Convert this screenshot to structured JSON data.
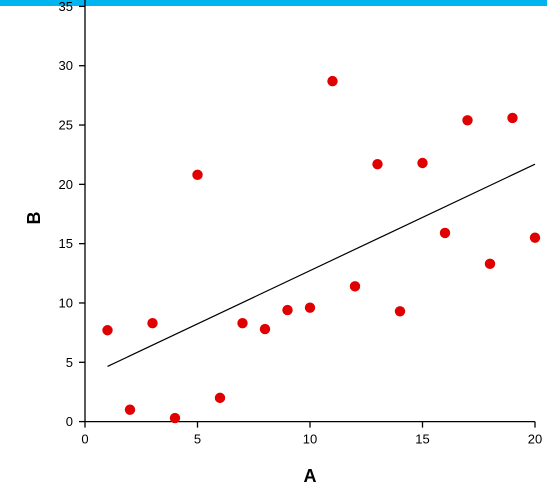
{
  "colors": {
    "top_bar": "#00b4f0",
    "point_fill": "#e00000",
    "axis": "#000000",
    "trendline": "#000000",
    "background": "#ffffff"
  },
  "chart_data": {
    "type": "scatter",
    "xlabel": "A",
    "ylabel": "B",
    "xlim": [
      0,
      20
    ],
    "ylim": [
      0,
      35
    ],
    "x_ticks": [
      0,
      5,
      10,
      15,
      20
    ],
    "y_ticks": [
      0,
      5,
      10,
      15,
      20,
      25,
      30,
      35
    ],
    "x_tick_labels": [
      "0",
      "5",
      "10",
      "15",
      "20"
    ],
    "y_tick_labels": [
      "0",
      "5",
      "10",
      "15",
      "20",
      "25",
      "30",
      "35"
    ],
    "grid": false,
    "legend": "none",
    "series": [
      {
        "x": [
          1,
          2,
          3,
          4,
          5,
          6,
          7,
          8,
          9,
          10,
          11,
          12,
          13,
          14,
          15,
          16,
          17,
          18,
          19,
          20
        ],
        "y": [
          7.7,
          1.0,
          8.3,
          0.3,
          20.8,
          2.0,
          8.3,
          7.8,
          9.4,
          9.6,
          28.7,
          11.4,
          21.7,
          9.3,
          21.8,
          15.9,
          25.4,
          13.3,
          25.6,
          15.5
        ]
      }
    ],
    "trendline": {
      "x": [
        1,
        20
      ],
      "y": [
        4.65,
        21.7
      ]
    }
  }
}
